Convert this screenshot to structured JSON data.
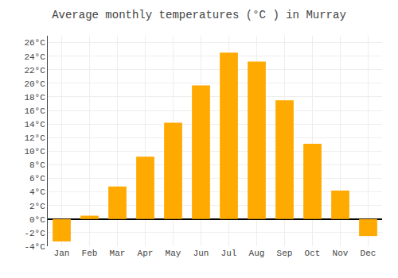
{
  "chart_data": {
    "type": "bar",
    "title": "Average monthly temperatures (°C ) in Murray",
    "categories": [
      "Jan",
      "Feb",
      "Mar",
      "Apr",
      "May",
      "Jun",
      "Jul",
      "Aug",
      "Sep",
      "Oct",
      "Nov",
      "Dec"
    ],
    "values": [
      -3.3,
      0.5,
      4.8,
      9.2,
      14.2,
      19.7,
      24.5,
      23.2,
      17.5,
      11.1,
      4.2,
      -2.5
    ],
    "color": "#FFAA00",
    "ylim": [
      -4,
      27
    ],
    "yticks": [
      {
        "value": -4,
        "label": "-4°C"
      },
      {
        "value": -2,
        "label": "-2°C"
      },
      {
        "value": 0,
        "label": "0°C"
      },
      {
        "value": 2,
        "label": "2°C"
      },
      {
        "value": 4,
        "label": "4°C"
      },
      {
        "value": 6,
        "label": "6°C"
      },
      {
        "value": 8,
        "label": "8°C"
      },
      {
        "value": 10,
        "label": "10°C"
      },
      {
        "value": 12,
        "label": "12°C"
      },
      {
        "value": 14,
        "label": "14°C"
      },
      {
        "value": 16,
        "label": "16°C"
      },
      {
        "value": 18,
        "label": "18°C"
      },
      {
        "value": 20,
        "label": "20°C"
      },
      {
        "value": 22,
        "label": "22°C"
      },
      {
        "value": 24,
        "label": "24°C"
      },
      {
        "value": 26,
        "label": "26°C"
      }
    ],
    "grid": true
  }
}
